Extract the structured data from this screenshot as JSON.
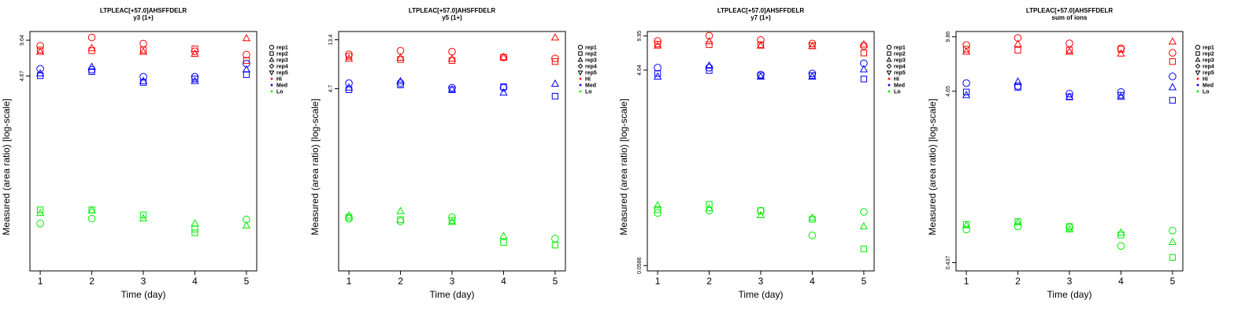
{
  "colors": {
    "Hi": "#ff0000",
    "Med": "#0000ff",
    "Lo": "#00ee00",
    "axis": "#000000"
  },
  "legend": {
    "placement": "right",
    "entries": [
      {
        "label": "rep1",
        "kind": "shape",
        "shape": "circle"
      },
      {
        "label": "rep2",
        "kind": "shape",
        "shape": "square"
      },
      {
        "label": "rep3",
        "kind": "shape",
        "shape": "triangle-up"
      },
      {
        "label": "rep4",
        "kind": "shape",
        "shape": "diamond"
      },
      {
        "label": "rep5",
        "kind": "shape",
        "shape": "triangle-down"
      },
      {
        "label": "Hi",
        "kind": "color",
        "group": "Hi"
      },
      {
        "label": "Med",
        "kind": "color",
        "group": "Med"
      },
      {
        "label": "Lo",
        "kind": "color",
        "group": "Lo"
      }
    ]
  },
  "chart_data": [
    {
      "type": "scatter",
      "title": "LTPLEAC[+57.0]AHSFFDELR",
      "subtitle": "y3 (1+)",
      "xlabel": "Time (day)",
      "ylabel": "Measured (area ratio) [log-scale]",
      "log_y": true,
      "x_ticks": [
        1,
        2,
        3,
        4,
        5
      ],
      "y_tick_labels": [
        "9.64",
        "4.67"
      ],
      "y_tick_values": [
        9.64,
        4.67
      ],
      "ylim": [
        0.09,
        11.5
      ],
      "xlim": [
        0.8,
        5.2
      ],
      "series": [
        {
          "group": "Hi",
          "shape": "circle",
          "points": [
            [
              1,
              8.6
            ],
            [
              2,
              10.2
            ],
            [
              3,
              9.0
            ],
            [
              4,
              7.7
            ],
            [
              5,
              7.2
            ]
          ]
        },
        {
          "group": "Hi",
          "shape": "square",
          "points": [
            [
              1,
              7.9
            ],
            [
              2,
              7.8
            ],
            [
              3,
              7.9
            ],
            [
              4,
              8.1
            ],
            [
              5,
              6.4
            ]
          ]
        },
        {
          "group": "Hi",
          "shape": "triangle-up",
          "points": [
            [
              1,
              7.6
            ],
            [
              2,
              8.2
            ],
            [
              3,
              7.6
            ],
            [
              4,
              7.3
            ],
            [
              5,
              10.0
            ]
          ]
        },
        {
          "group": "Med",
          "shape": "circle",
          "points": [
            [
              1,
              5.4
            ],
            [
              2,
              5.3
            ],
            [
              3,
              4.6
            ],
            [
              4,
              4.6
            ],
            [
              5,
              6.0
            ]
          ]
        },
        {
          "group": "Med",
          "shape": "square",
          "points": [
            [
              1,
              4.7
            ],
            [
              2,
              5.1
            ],
            [
              3,
              4.1
            ],
            [
              4,
              4.4
            ],
            [
              5,
              4.8
            ]
          ]
        },
        {
          "group": "Med",
          "shape": "triangle-up",
          "points": [
            [
              1,
              4.9
            ],
            [
              2,
              5.6
            ],
            [
              3,
              4.2
            ],
            [
              4,
              4.2
            ],
            [
              5,
              5.3
            ]
          ]
        },
        {
          "group": "Lo",
          "shape": "circle",
          "points": [
            [
              1,
              0.235
            ],
            [
              2,
              0.26
            ],
            [
              5,
              0.255
            ]
          ]
        },
        {
          "group": "Lo",
          "shape": "square",
          "points": [
            [
              1,
              0.31
            ],
            [
              2,
              0.31
            ],
            [
              3,
              0.28
            ],
            [
              4,
              0.21
            ]
          ]
        },
        {
          "group": "Lo",
          "shape": "triangle-up",
          "points": [
            [
              1,
              0.29
            ],
            [
              2,
              0.305
            ],
            [
              3,
              0.26
            ],
            [
              4,
              0.235
            ],
            [
              5,
              0.225
            ]
          ]
        },
        {
          "group": "Lo",
          "shape": "square",
          "points": [
            [
              4,
              0.195
            ]
          ]
        }
      ]
    },
    {
      "type": "scatter",
      "title": "LTPLEAC[+57.0]AHSFFDELR",
      "subtitle": "y5 (1+)",
      "xlabel": "Time (day)",
      "ylabel": "Measured (area ratio) [log-scale]",
      "log_y": true,
      "x_ticks": [
        1,
        2,
        3,
        4,
        5
      ],
      "y_tick_labels": [
        "13.4",
        "4.7"
      ],
      "y_tick_values": [
        13.4,
        4.7
      ],
      "ylim": [
        0.095,
        16.0
      ],
      "xlim": [
        0.8,
        5.2
      ],
      "series": [
        {
          "group": "Hi",
          "shape": "circle",
          "points": [
            [
              1,
              9.8
            ],
            [
              2,
              10.6
            ],
            [
              3,
              10.4
            ],
            [
              4,
              9.2
            ],
            [
              5,
              9.0
            ]
          ]
        },
        {
          "group": "Hi",
          "shape": "square",
          "points": [
            [
              1,
              9.4
            ],
            [
              2,
              8.8
            ],
            [
              3,
              8.6
            ],
            [
              4,
              9.2
            ],
            [
              5,
              8.4
            ]
          ]
        },
        {
          "group": "Hi",
          "shape": "triangle-up",
          "points": [
            [
              1,
              8.9
            ],
            [
              2,
              9.1
            ],
            [
              3,
              8.9
            ],
            [
              4,
              9.2
            ],
            [
              5,
              14.0
            ]
          ]
        },
        {
          "group": "Med",
          "shape": "circle",
          "points": [
            [
              1,
              5.3
            ],
            [
              2,
              5.3
            ],
            [
              3,
              4.8
            ],
            [
              4,
              4.8
            ]
          ]
        },
        {
          "group": "Med",
          "shape": "square",
          "points": [
            [
              1,
              4.6
            ],
            [
              2,
              5.1
            ],
            [
              3,
              4.6
            ],
            [
              4,
              4.9
            ],
            [
              5,
              4.0
            ]
          ]
        },
        {
          "group": "Med",
          "shape": "triangle-up",
          "points": [
            [
              1,
              4.8
            ],
            [
              2,
              5.5
            ],
            [
              3,
              4.6
            ],
            [
              4,
              4.3
            ],
            [
              5,
              5.2
            ]
          ]
        },
        {
          "group": "Lo",
          "shape": "circle",
          "points": [
            [
              1,
              0.29
            ],
            [
              2,
              0.275
            ],
            [
              3,
              0.3
            ],
            [
              5,
              0.19
            ]
          ]
        },
        {
          "group": "Lo",
          "shape": "square",
          "points": [
            [
              1,
              0.3
            ],
            [
              2,
              0.285
            ],
            [
              3,
              0.28
            ],
            [
              4,
              0.175
            ],
            [
              5,
              0.165
            ]
          ]
        },
        {
          "group": "Lo",
          "shape": "triangle-up",
          "points": [
            [
              1,
              0.31
            ],
            [
              2,
              0.34
            ],
            [
              3,
              0.27
            ],
            [
              4,
              0.2
            ]
          ]
        }
      ]
    },
    {
      "type": "scatter",
      "title": "LTPLEAC[+57.0]AHSFFDELR",
      "subtitle": "y7 (1+)",
      "xlabel": "Time (day)",
      "ylabel": "Measured (area ratio) [log-scale]",
      "log_y": true,
      "x_ticks": [
        1,
        2,
        3,
        4,
        5
      ],
      "y_tick_labels": [
        "9.95",
        "4.64",
        "0.0586"
      ],
      "y_tick_values": [
        9.95,
        4.64,
        0.0586
      ],
      "ylim": [
        0.052,
        11.0
      ],
      "xlim": [
        0.8,
        5.2
      ],
      "series": [
        {
          "group": "Hi",
          "shape": "circle",
          "points": [
            [
              1,
              8.9
            ],
            [
              2,
              10.0
            ],
            [
              3,
              9.1
            ],
            [
              4,
              8.4
            ],
            [
              5,
              8.0
            ]
          ]
        },
        {
          "group": "Hi",
          "shape": "square",
          "points": [
            [
              1,
              8.3
            ],
            [
              2,
              8.2
            ],
            [
              3,
              8.2
            ],
            [
              4,
              8.0
            ],
            [
              5,
              6.8
            ]
          ]
        },
        {
          "group": "Hi",
          "shape": "triangle-up",
          "points": [
            [
              1,
              8.0
            ],
            [
              2,
              8.8
            ],
            [
              3,
              8.0
            ],
            [
              4,
              7.9
            ],
            [
              5,
              8.2
            ]
          ]
        },
        {
          "group": "Med",
          "shape": "circle",
          "points": [
            [
              1,
              4.9
            ],
            [
              2,
              4.9
            ],
            [
              3,
              4.2
            ],
            [
              4,
              4.3
            ],
            [
              5,
              5.4
            ]
          ]
        },
        {
          "group": "Med",
          "shape": "square",
          "points": [
            [
              1,
              4.3
            ],
            [
              2,
              4.6
            ],
            [
              3,
              4.1
            ],
            [
              4,
              4.1
            ],
            [
              5,
              3.8
            ]
          ]
        },
        {
          "group": "Med",
          "shape": "triangle-up",
          "points": [
            [
              1,
              4.0
            ],
            [
              2,
              5.1
            ],
            [
              3,
              4.0
            ],
            [
              4,
              4.0
            ],
            [
              5,
              4.7
            ]
          ]
        },
        {
          "group": "Lo",
          "shape": "circle",
          "points": [
            [
              1,
              0.19
            ],
            [
              2,
              0.2
            ],
            [
              3,
              0.2
            ],
            [
              4,
              0.115
            ],
            [
              5,
              0.195
            ]
          ]
        },
        {
          "group": "Lo",
          "shape": "square",
          "points": [
            [
              1,
              0.205
            ],
            [
              2,
              0.23
            ],
            [
              3,
              0.2
            ],
            [
              4,
              0.165
            ],
            [
              5,
              0.085
            ]
          ]
        },
        {
          "group": "Lo",
          "shape": "triangle-up",
          "points": [
            [
              1,
              0.225
            ],
            [
              2,
              0.21
            ],
            [
              3,
              0.18
            ],
            [
              4,
              0.17
            ],
            [
              5,
              0.14
            ]
          ]
        }
      ]
    },
    {
      "type": "scatter",
      "title": "LTPLEAC[+57.0]AHSFFDELR",
      "subtitle": "sum of ions",
      "xlabel": "Time (day)",
      "ylabel": "Measured (area ratio) [log-scale]",
      "log_y": true,
      "x_ticks": [
        1,
        2,
        3,
        4,
        5
      ],
      "y_tick_labels": [
        "9.86",
        "4.65",
        "0.437"
      ],
      "y_tick_values": [
        9.86,
        4.65,
        0.437
      ],
      "ylim": [
        0.39,
        10.6
      ],
      "xlim": [
        0.8,
        5.2
      ],
      "series": [
        {
          "group": "Hi",
          "shape": "circle",
          "points": [
            [
              1,
              8.8
            ],
            [
              2,
              9.7
            ],
            [
              3,
              9.0
            ],
            [
              4,
              8.4
            ],
            [
              5,
              7.9
            ]
          ]
        },
        {
          "group": "Hi",
          "shape": "square",
          "points": [
            [
              1,
              8.3
            ],
            [
              2,
              8.2
            ],
            [
              3,
              8.2
            ],
            [
              4,
              8.3
            ],
            [
              5,
              7.0
            ]
          ]
        },
        {
          "group": "Hi",
          "shape": "triangle-up",
          "points": [
            [
              1,
              8.0
            ],
            [
              2,
              8.9
            ],
            [
              3,
              8.0
            ],
            [
              4,
              7.8
            ],
            [
              5,
              9.2
            ]
          ]
        },
        {
          "group": "Med",
          "shape": "circle",
          "points": [
            [
              1,
              5.2
            ],
            [
              2,
              5.0
            ],
            [
              3,
              4.5
            ],
            [
              4,
              4.6
            ],
            [
              5,
              5.7
            ]
          ]
        },
        {
          "group": "Med",
          "shape": "square",
          "points": [
            [
              1,
              4.6
            ],
            [
              2,
              4.9
            ],
            [
              3,
              4.3
            ],
            [
              4,
              4.4
            ],
            [
              5,
              4.1
            ]
          ]
        },
        {
          "group": "Med",
          "shape": "triangle-up",
          "points": [
            [
              1,
              4.4
            ],
            [
              2,
              5.3
            ],
            [
              3,
              4.3
            ],
            [
              4,
              4.3
            ],
            [
              5,
              4.9
            ]
          ]
        },
        {
          "group": "Lo",
          "shape": "circle",
          "points": [
            [
              1,
              0.69
            ],
            [
              2,
              0.72
            ],
            [
              3,
              0.71
            ],
            [
              4,
              0.55
            ],
            [
              5,
              0.68
            ]
          ]
        },
        {
          "group": "Lo",
          "shape": "square",
          "points": [
            [
              1,
              0.74
            ],
            [
              2,
              0.77
            ],
            [
              3,
              0.72
            ],
            [
              4,
              0.64
            ],
            [
              5,
              0.47
            ]
          ]
        },
        {
          "group": "Lo",
          "shape": "triangle-up",
          "points": [
            [
              1,
              0.73
            ],
            [
              2,
              0.76
            ],
            [
              3,
              0.69
            ],
            [
              4,
              0.66
            ],
            [
              5,
              0.58
            ]
          ]
        }
      ]
    }
  ]
}
